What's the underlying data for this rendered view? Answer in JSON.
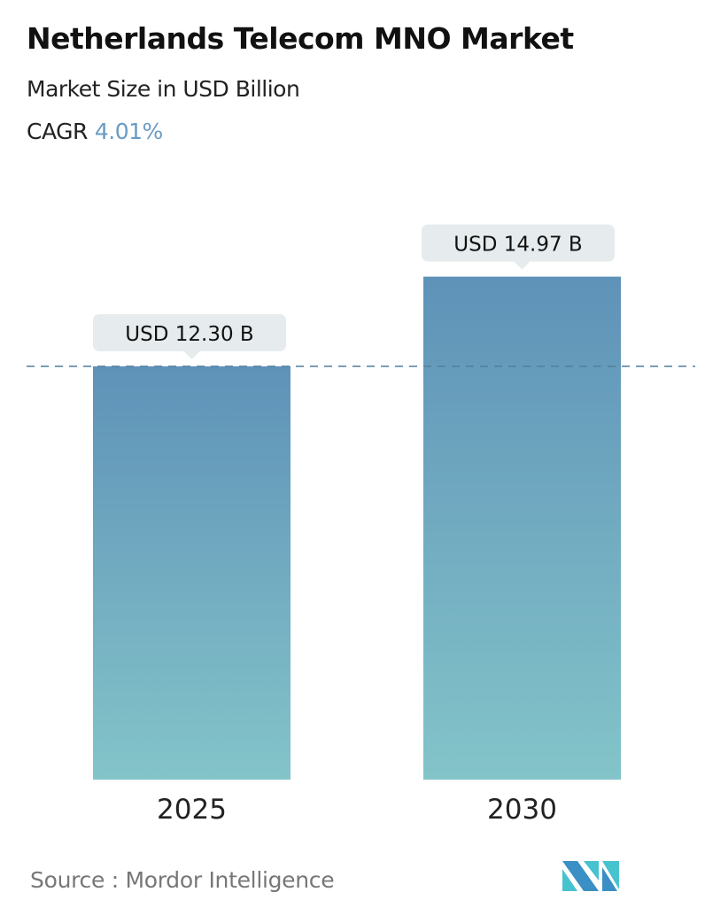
{
  "header": {
    "title": "Netherlands Telecom MNO Market",
    "subtitle": "Market Size in USD Billion",
    "cagr_label": "CAGR",
    "cagr_value": "4.01%"
  },
  "chart_data": {
    "type": "bar",
    "categories": [
      "2025",
      "2030"
    ],
    "values": [
      12.3,
      14.97
    ],
    "data_labels": [
      "USD 12.30 B",
      "USD 14.97 B"
    ],
    "reference_line": "dashed at 2025 value",
    "colors": {
      "bar_top": "#5f92b8",
      "bar_bottom": "#83c4c9",
      "label_bg": "#e6eced",
      "accent": "#6a9bc3"
    },
    "grid": false
  },
  "footer": {
    "source": "Source :  Mordor Intelligence",
    "logo": "Mordor Intelligence logo"
  }
}
